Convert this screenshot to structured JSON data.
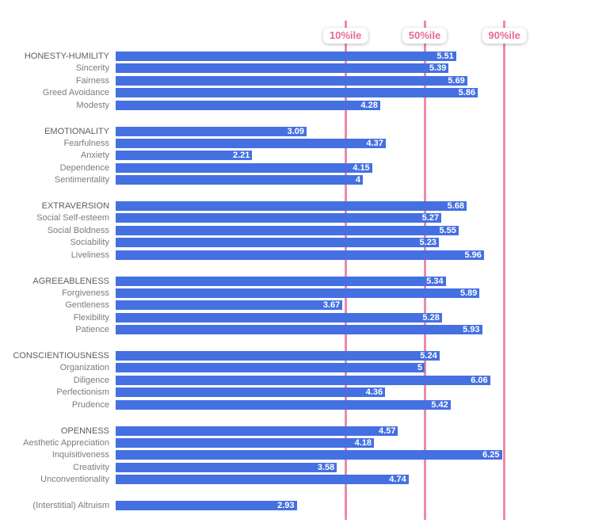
{
  "chart_data": {
    "type": "bar",
    "orientation": "horizontal",
    "title": "",
    "value_domain": [
      0,
      8
    ],
    "grid": false,
    "percentile_lines": [
      {
        "label": "10%ile",
        "value": 3.72
      },
      {
        "label": "50%ile",
        "value": 5.0
      },
      {
        "label": "90%ile",
        "value": 6.29
      }
    ],
    "groups": [
      {
        "rows": [
          {
            "label": "HONESTY-HUMILITY",
            "value": 5.51,
            "display": "5.51",
            "is_factor": true
          },
          {
            "label": "Sincerity",
            "value": 5.39,
            "display": "5.39",
            "is_factor": false
          },
          {
            "label": "Fairness",
            "value": 5.69,
            "display": "5.69",
            "is_factor": false
          },
          {
            "label": "Greed Avoidance",
            "value": 5.86,
            "display": "5.86",
            "is_factor": false
          },
          {
            "label": "Modesty",
            "value": 4.28,
            "display": "4.28",
            "is_factor": false
          }
        ]
      },
      {
        "rows": [
          {
            "label": "EMOTIONALITY",
            "value": 3.09,
            "display": "3.09",
            "is_factor": true
          },
          {
            "label": "Fearfulness",
            "value": 4.37,
            "display": "4.37",
            "is_factor": false
          },
          {
            "label": "Anxiety",
            "value": 2.21,
            "display": "2.21",
            "is_factor": false
          },
          {
            "label": "Dependence",
            "value": 4.15,
            "display": "4.15",
            "is_factor": false
          },
          {
            "label": "Sentimentality",
            "value": 4,
            "display": "4",
            "is_factor": false
          }
        ]
      },
      {
        "rows": [
          {
            "label": "EXTRAVERSION",
            "value": 5.68,
            "display": "5.68",
            "is_factor": true
          },
          {
            "label": "Social Self-esteem",
            "value": 5.27,
            "display": "5.27",
            "is_factor": false
          },
          {
            "label": "Social Boldness",
            "value": 5.55,
            "display": "5.55",
            "is_factor": false
          },
          {
            "label": "Sociability",
            "value": 5.23,
            "display": "5.23",
            "is_factor": false
          },
          {
            "label": "Liveliness",
            "value": 5.96,
            "display": "5.96",
            "is_factor": false
          }
        ]
      },
      {
        "rows": [
          {
            "label": "AGREEABLENESS",
            "value": 5.34,
            "display": "5.34",
            "is_factor": true
          },
          {
            "label": "Forgiveness",
            "value": 5.89,
            "display": "5.89",
            "is_factor": false
          },
          {
            "label": "Gentleness",
            "value": 3.67,
            "display": "3.67",
            "is_factor": false
          },
          {
            "label": "Flexibility",
            "value": 5.28,
            "display": "5.28",
            "is_factor": false
          },
          {
            "label": "Patience",
            "value": 5.93,
            "display": "5.93",
            "is_factor": false
          }
        ]
      },
      {
        "rows": [
          {
            "label": "CONSCIENTIOUSNESS",
            "value": 5.24,
            "display": "5.24",
            "is_factor": true
          },
          {
            "label": "Organization",
            "value": 5,
            "display": "5",
            "is_factor": false
          },
          {
            "label": "Diligence",
            "value": 6.06,
            "display": "6.06",
            "is_factor": false
          },
          {
            "label": "Perfectionism",
            "value": 4.36,
            "display": "4.36",
            "is_factor": false
          },
          {
            "label": "Prudence",
            "value": 5.42,
            "display": "5.42",
            "is_factor": false
          }
        ]
      },
      {
        "rows": [
          {
            "label": "OPENNESS",
            "value": 4.57,
            "display": "4.57",
            "is_factor": true
          },
          {
            "label": "Aesthetic Appreciation",
            "value": 4.18,
            "display": "4.18",
            "is_factor": false
          },
          {
            "label": "Inquisitiveness",
            "value": 6.25,
            "display": "6.25",
            "is_factor": false
          },
          {
            "label": "Creativity",
            "value": 3.58,
            "display": "3.58",
            "is_factor": false
          },
          {
            "label": "Unconventionality",
            "value": 4.74,
            "display": "4.74",
            "is_factor": false
          }
        ]
      },
      {
        "rows": [
          {
            "label": "(Interstitial) Altruism",
            "value": 2.93,
            "display": "2.93",
            "is_factor": false
          }
        ]
      }
    ],
    "colors": {
      "bar": "#4570e1",
      "percentile_line": "#ec8aa9",
      "badge_bg": "#ffffff",
      "badge_text": "#e86a93",
      "factor_label": "#5c5e61",
      "facet_label": "#797c80",
      "value_text": "#ffffff",
      "background": "#ffffff"
    }
  }
}
